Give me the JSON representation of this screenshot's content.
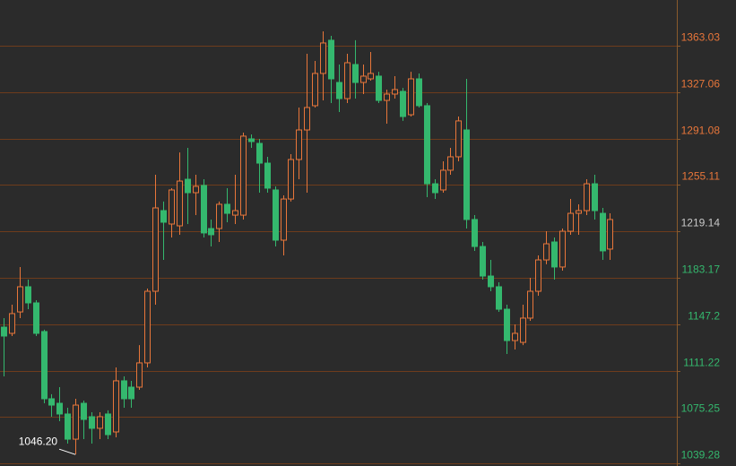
{
  "chart_data": {
    "type": "candlestick",
    "ohlc": [
      [
        1144.9,
        1151.9,
        1106.7,
        1138.0
      ],
      [
        1140.1,
        1162.3,
        1138.0,
        1155.4
      ],
      [
        1156.7,
        1191.5,
        1151.9,
        1176.2
      ],
      [
        1176.2,
        1181.7,
        1158.8,
        1163.7
      ],
      [
        1163.7,
        1165.8,
        1138.0,
        1140.1
      ],
      [
        1141.5,
        1142.9,
        1085.9,
        1089.4
      ],
      [
        1089.4,
        1092.9,
        1075.5,
        1084.5
      ],
      [
        1085.9,
        1098.4,
        1072.0,
        1077.6
      ],
      [
        1077.6,
        1082.4,
        1054.7,
        1058.1
      ],
      [
        1058.1,
        1089.4,
        1046.2,
        1084.5
      ],
      [
        1085.9,
        1088.0,
        1058.1,
        1073.4
      ],
      [
        1075.5,
        1079.0,
        1054.7,
        1066.5
      ],
      [
        1066.5,
        1079.0,
        1058.1,
        1075.5
      ],
      [
        1077.6,
        1080.4,
        1058.1,
        1061.6
      ],
      [
        1063.7,
        1113.7,
        1059.5,
        1103.3
      ],
      [
        1103.3,
        1106.7,
        1082.4,
        1089.4
      ],
      [
        1098.4,
        1103.3,
        1082.4,
        1089.4
      ],
      [
        1098.4,
        1131.0,
        1096.3,
        1117.2
      ],
      [
        1117.2,
        1174.8,
        1113.7,
        1172.7
      ],
      [
        1172.7,
        1263.0,
        1162.3,
        1237.3
      ],
      [
        1235.2,
        1242.2,
        1197.0,
        1226.2
      ],
      [
        1224.8,
        1252.6,
        1214.4,
        1251.2
      ],
      [
        1223.4,
        1280.3,
        1216.5,
        1258.1
      ],
      [
        1259.5,
        1283.8,
        1224.8,
        1249.1
      ],
      [
        1249.1,
        1263.0,
        1231.7,
        1254.0
      ],
      [
        1254.7,
        1259.5,
        1214.4,
        1217.9
      ],
      [
        1221.3,
        1228.3,
        1207.4,
        1216.5
      ],
      [
        1221.3,
        1242.2,
        1210.9,
        1240.1
      ],
      [
        1240.1,
        1252.6,
        1226.2,
        1233.1
      ],
      [
        1231.7,
        1263.0,
        1224.8,
        1235.2
      ],
      [
        1231.7,
        1295.6,
        1228.3,
        1292.9
      ],
      [
        1290.8,
        1294.2,
        1283.8,
        1288.7
      ],
      [
        1287.3,
        1290.8,
        1249.1,
        1272.0
      ],
      [
        1272.0,
        1276.9,
        1249.1,
        1252.6
      ],
      [
        1251.2,
        1254.0,
        1207.4,
        1212.3
      ],
      [
        1212.3,
        1247.0,
        1200.5,
        1244.2
      ],
      [
        1244.2,
        1279.0,
        1242.2,
        1274.8
      ],
      [
        1274.8,
        1315.1,
        1259.5,
        1297.7
      ],
      [
        1297.7,
        1356.7,
        1249.1,
        1315.1
      ],
      [
        1316.5,
        1351.2,
        1315.1,
        1341.5
      ],
      [
        1341.5,
        1374.1,
        1320.6,
        1365.1
      ],
      [
        1367.2,
        1370.6,
        1318.5,
        1337.3
      ],
      [
        1334.5,
        1348.4,
        1311.6,
        1322.0
      ],
      [
        1322.0,
        1356.7,
        1318.5,
        1349.8
      ],
      [
        1348.4,
        1367.2,
        1322.0,
        1334.5
      ],
      [
        1334.5,
        1348.4,
        1325.5,
        1339.4
      ],
      [
        1337.3,
        1358.1,
        1335.9,
        1341.5
      ],
      [
        1339.4,
        1342.8,
        1318.5,
        1320.6
      ],
      [
        1320.6,
        1329.0,
        1302.6,
        1325.5
      ],
      [
        1325.5,
        1339.4,
        1322.0,
        1329.0
      ],
      [
        1327.6,
        1330.3,
        1304.7,
        1308.1
      ],
      [
        1309.5,
        1342.8,
        1308.1,
        1337.3
      ],
      [
        1337.3,
        1341.5,
        1315.1,
        1316.5
      ],
      [
        1316.5,
        1318.5,
        1245.6,
        1256.0
      ],
      [
        1256.0,
        1259.5,
        1244.2,
        1249.1
      ],
      [
        1251.2,
        1273.4,
        1249.1,
        1266.5
      ],
      [
        1266.5,
        1283.8,
        1263.0,
        1276.9
      ],
      [
        1276.9,
        1308.1,
        1273.4,
        1304.7
      ],
      [
        1297.7,
        1337.3,
        1221.3,
        1228.3
      ],
      [
        1228.3,
        1231.7,
        1204.0,
        1207.4
      ],
      [
        1207.4,
        1210.9,
        1181.7,
        1184.5
      ],
      [
        1184.5,
        1197.0,
        1172.7,
        1176.2
      ],
      [
        1176.2,
        1179.7,
        1156.7,
        1158.8
      ],
      [
        1158.8,
        1162.3,
        1124.1,
        1134.5
      ],
      [
        1134.5,
        1147.0,
        1127.6,
        1140.1
      ],
      [
        1133.1,
        1162.3,
        1131.0,
        1151.9
      ],
      [
        1151.9,
        1183.1,
        1149.8,
        1172.7
      ],
      [
        1172.7,
        1200.5,
        1169.2,
        1197.0
      ],
      [
        1197.0,
        1219.2,
        1193.6,
        1209.5
      ],
      [
        1210.9,
        1214.4,
        1181.7,
        1191.5
      ],
      [
        1191.5,
        1221.3,
        1188.7,
        1219.2
      ],
      [
        1219.2,
        1244.2,
        1216.5,
        1233.1
      ],
      [
        1233.1,
        1240.1,
        1216.5,
        1235.2
      ],
      [
        1235.2,
        1259.5,
        1231.7,
        1256.0
      ],
      [
        1256.0,
        1263.0,
        1228.3,
        1235.2
      ],
      [
        1233.1,
        1237.3,
        1197.0,
        1204.0
      ],
      [
        1205.4,
        1233.1,
        1197.0,
        1228.3
      ]
    ],
    "up_color": "#e8763a",
    "down_color": "#34b86e",
    "ylim": [
      1037.3,
      1398.4
    ],
    "yticks": [
      1363.03,
      1327.06,
      1291.08,
      1255.11,
      1219.14,
      1183.17,
      1147.2,
      1111.22,
      1075.25,
      1039.28
    ],
    "ytick_colors": [
      "#e8763a",
      "#e8763a",
      "#e8763a",
      "#e8763a",
      "#c8c8c8",
      "#34b86e",
      "#34b86e",
      "#34b86e",
      "#34b86e",
      "#34b86e"
    ],
    "annotation": {
      "label": "1046.20",
      "value": 1046.2
    },
    "grid": true
  }
}
